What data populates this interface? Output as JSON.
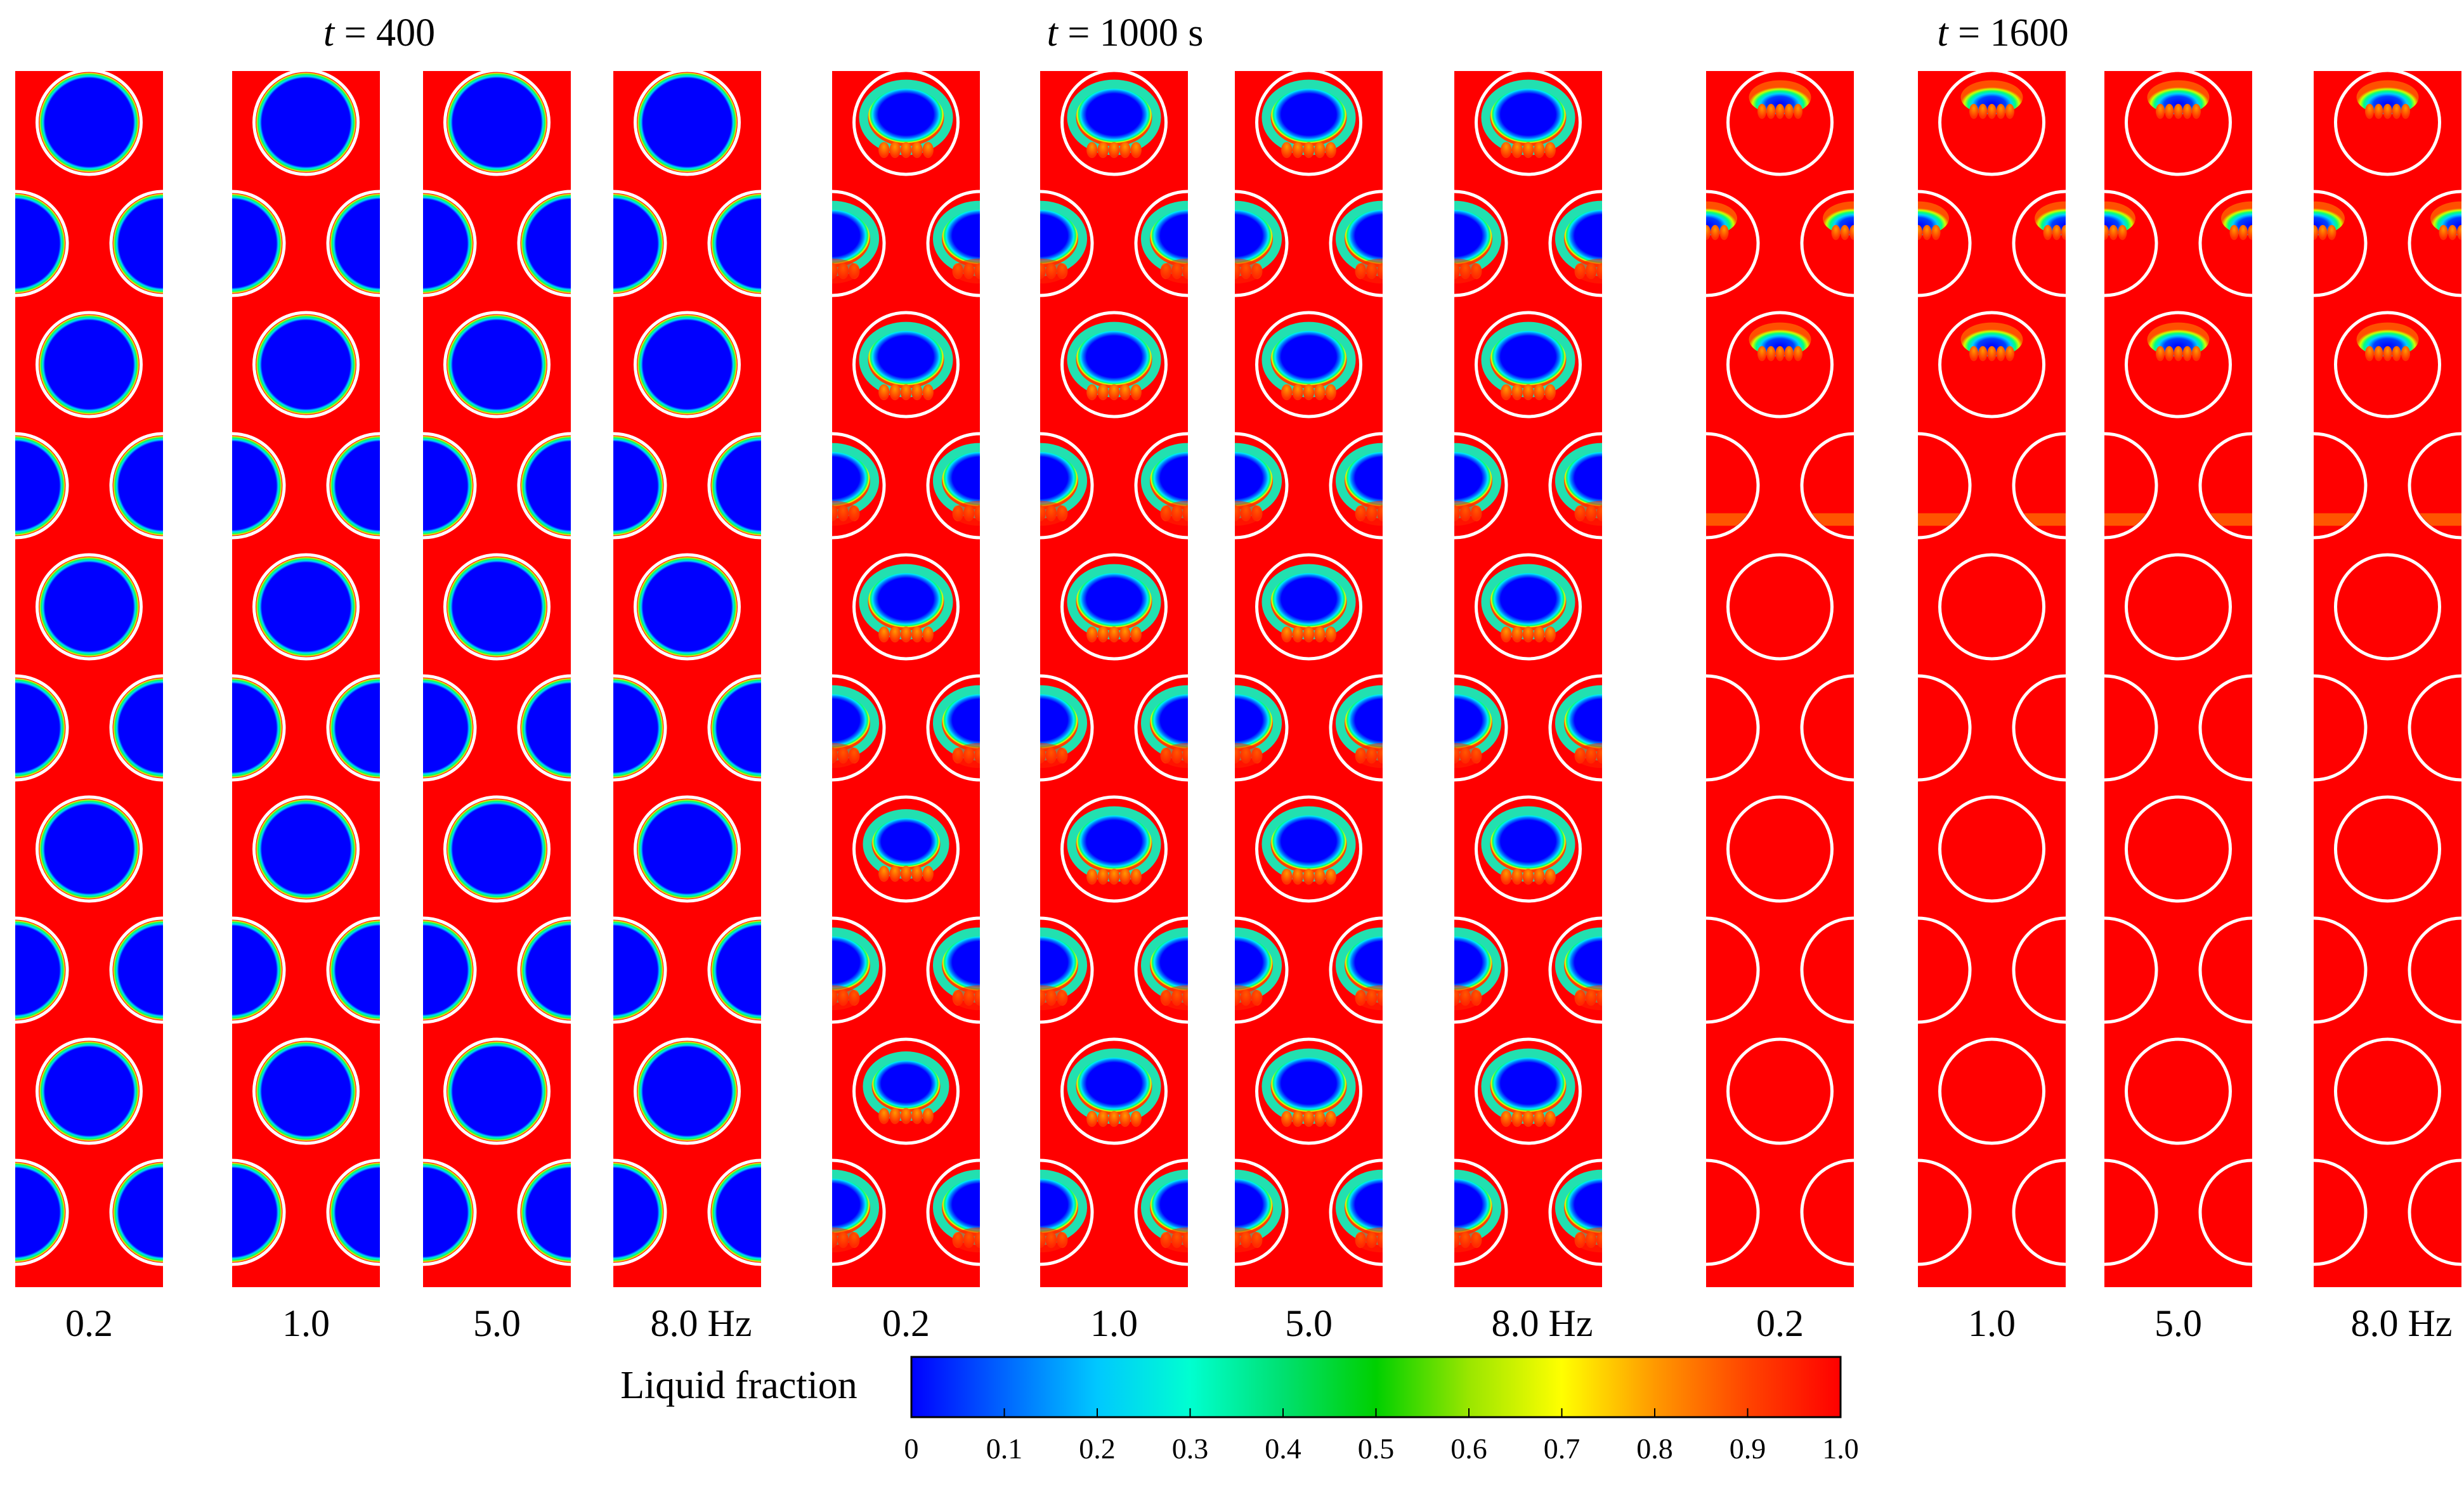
{
  "figure": {
    "time_labels": [
      {
        "var": "t",
        "rest": " = 400"
      },
      {
        "var": "t",
        "rest": " = 1000 s"
      },
      {
        "var": "t",
        "rest": " = 1600"
      }
    ],
    "frequency_labels": [
      [
        "0.2",
        "1.0",
        "5.0",
        "8.0 Hz"
      ],
      [
        "0.2",
        "1.0",
        "5.0",
        "8.0 Hz"
      ],
      [
        "0.2",
        "1.0",
        "5.0",
        "8.0 Hz"
      ]
    ],
    "colorbar": {
      "label": "Liquid fraction",
      "ticks": [
        "0",
        "0.1",
        "0.2",
        "0.3",
        "0.4",
        "0.5",
        "0.6",
        "0.7",
        "0.8",
        "0.9",
        "1.0"
      ],
      "range": [
        0,
        1
      ],
      "stops": [
        "#0000ff",
        "#0066ff",
        "#00c8ff",
        "#00ffd0",
        "#00e070",
        "#00d000",
        "#9ae600",
        "#ffff00",
        "#ff9900",
        "#ff4400",
        "#ff0000"
      ]
    },
    "colors": {
      "solid_pcm": "#0000ff",
      "liquid_pcm": "#ff0000",
      "tube_wall": "#ffffff"
    },
    "melt_state": [
      [
        [
          0,
          0,
          0,
          0,
          0,
          0,
          0,
          0,
          0,
          0
        ],
        [
          0,
          0,
          0,
          0,
          0,
          0,
          0,
          0,
          0,
          0
        ],
        [
          0,
          0,
          0,
          0,
          0,
          0,
          0,
          0,
          0,
          0
        ],
        [
          0,
          0,
          0,
          0,
          0,
          0,
          0,
          0,
          0,
          0
        ]
      ],
      [
        [
          1,
          1,
          1,
          1,
          1,
          1,
          2,
          1,
          2,
          1
        ],
        [
          1,
          1,
          1,
          1,
          1,
          1,
          1,
          1,
          1,
          1
        ],
        [
          1,
          1,
          1,
          1,
          1,
          1,
          1,
          1,
          1,
          1
        ],
        [
          1,
          1,
          1,
          1,
          1,
          1,
          1,
          1,
          1,
          1
        ]
      ],
      [
        [
          3,
          3,
          3,
          4,
          5,
          5,
          5,
          5,
          5,
          5
        ],
        [
          3,
          3,
          3,
          4,
          5,
          5,
          5,
          5,
          5,
          5
        ],
        [
          3,
          3,
          3,
          4,
          5,
          5,
          5,
          5,
          5,
          5
        ],
        [
          3,
          3,
          3,
          4,
          5,
          5,
          5,
          5,
          5,
          5
        ]
      ]
    ]
  }
}
